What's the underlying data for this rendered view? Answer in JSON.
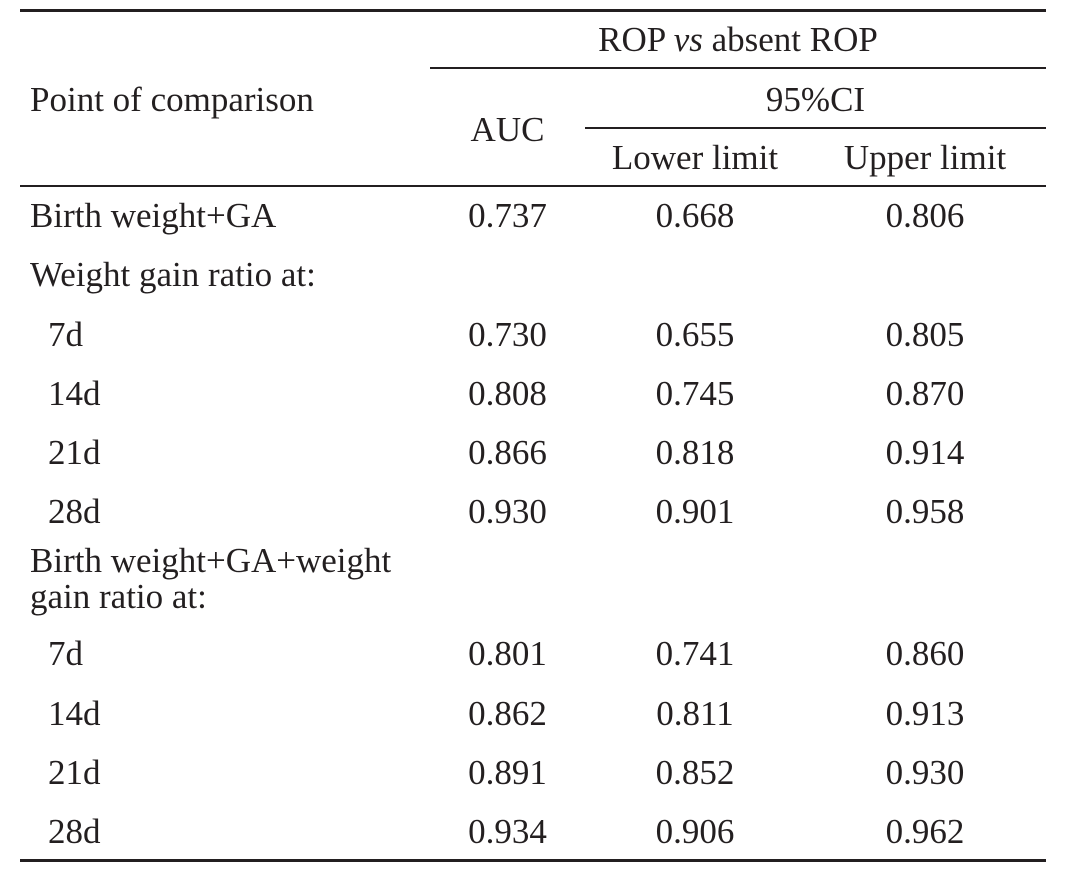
{
  "table": {
    "header": {
      "group_prefix": "ROP ",
      "group_italic": "vs",
      "group_suffix": " absent ROP",
      "point_label": "Point of comparison",
      "auc_label": "AUC",
      "ci_label": "95%CI",
      "lower_label": "Lower limit",
      "upper_label": "Upper limit"
    },
    "rows": [
      {
        "label": "Birth weight+GA",
        "auc": "0.737",
        "lower": "0.668",
        "upper": "0.806"
      },
      {
        "label": "Weight gain ratio at:"
      },
      {
        "label": "7d",
        "auc": "0.730",
        "lower": "0.655",
        "upper": "0.805"
      },
      {
        "label": "14d",
        "auc": "0.808",
        "lower": "0.745",
        "upper": "0.870"
      },
      {
        "label": "21d",
        "auc": "0.866",
        "lower": "0.818",
        "upper": "0.914"
      },
      {
        "label": "28d",
        "auc": "0.930",
        "lower": "0.901",
        "upper": "0.958"
      },
      {
        "label": "Birth weight+GA+weight gain ratio at:"
      },
      {
        "label": "7d",
        "auc": "0.801",
        "lower": "0.741",
        "upper": "0.860"
      },
      {
        "label": "14d",
        "auc": "0.862",
        "lower": "0.811",
        "upper": "0.913"
      },
      {
        "label": "21d",
        "auc": "0.891",
        "lower": "0.852",
        "upper": "0.930"
      },
      {
        "label": "28d",
        "auc": "0.934",
        "lower": "0.906",
        "upper": "0.962"
      }
    ]
  }
}
